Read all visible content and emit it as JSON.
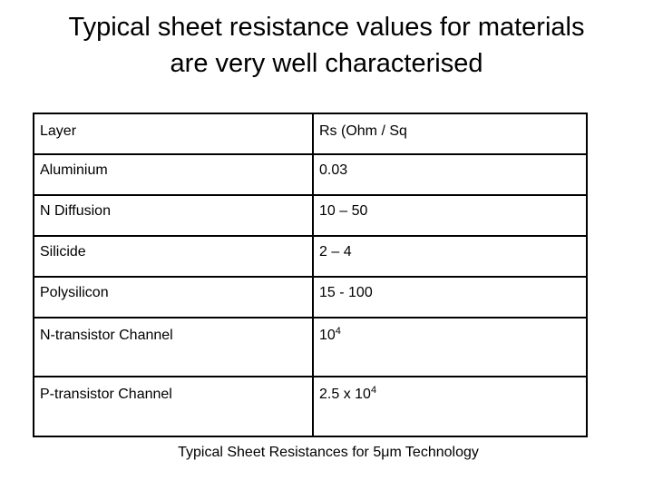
{
  "title": {
    "line1": "Typical sheet resistance values for materials",
    "line2": "are very well characterised"
  },
  "table": {
    "header": {
      "layer": "Layer",
      "rs": "Rs (Ohm / Sq"
    },
    "rows": [
      {
        "layer": "Aluminium",
        "rs": "0.03"
      },
      {
        "layer": "N Diffusion",
        "rs": "10 – 50"
      },
      {
        "layer": "Silicide",
        "rs": "2 – 4"
      },
      {
        "layer": "Polysilicon",
        "rs": "15 - 100"
      },
      {
        "layer": "N-transistor Channel",
        "rs_base": "10",
        "rs_exp": "4"
      },
      {
        "layer": "P-transistor Channel",
        "rs_base": "2.5 x 10",
        "rs_exp": "4"
      }
    ]
  },
  "caption": "Typical Sheet Resistances for 5μm Technology"
}
